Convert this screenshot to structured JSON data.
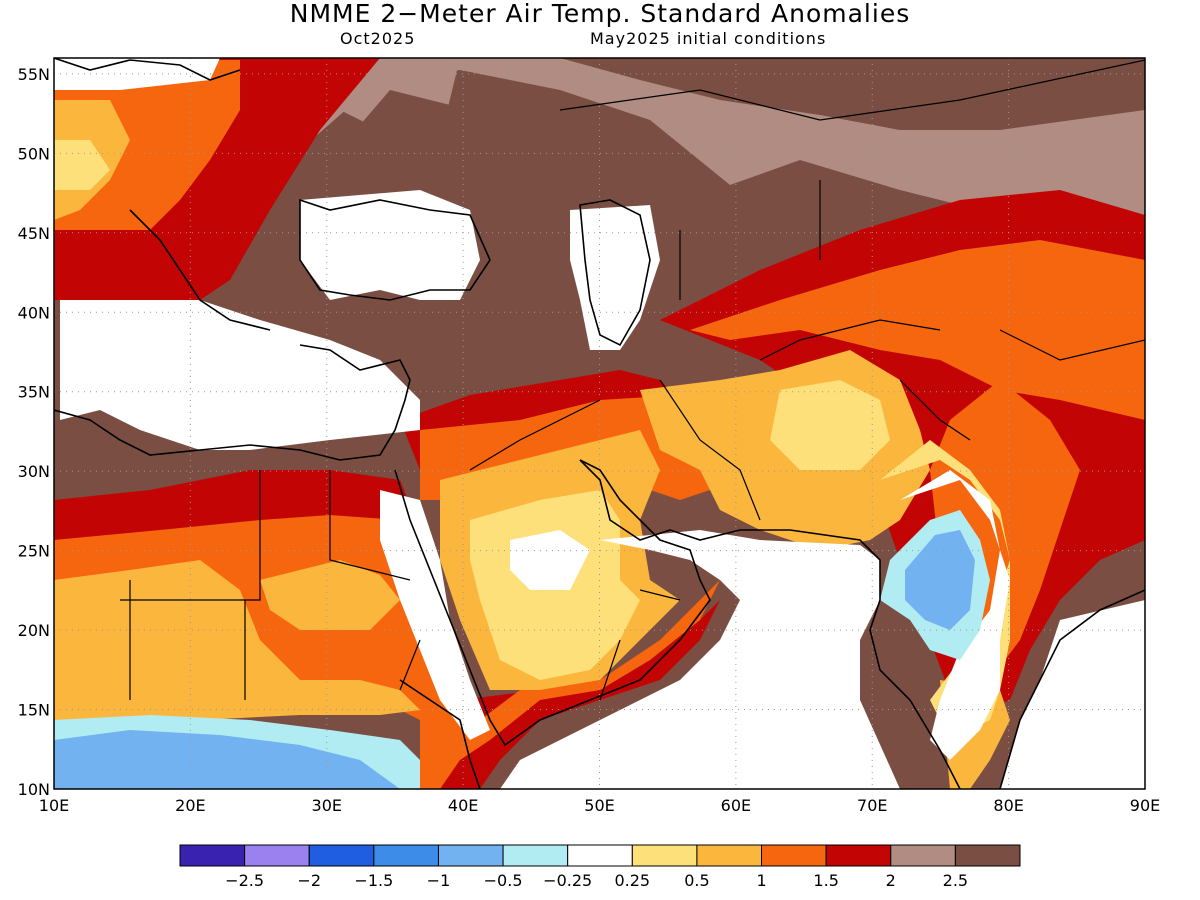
{
  "title": "NMME 2−Meter Air Temp. Standard Anomalies",
  "subtitle_left": "Oct2025",
  "subtitle_right": "May2025 initial conditions",
  "lat_labels": [
    "55N",
    "50N",
    "45N",
    "40N",
    "35N",
    "30N",
    "25N",
    "20N",
    "15N",
    "10N"
  ],
  "lon_labels": [
    "10E",
    "20E",
    "30E",
    "40E",
    "50E",
    "60E",
    "70E",
    "80E",
    "90E"
  ],
  "map_extent": {
    "lon_min": 10,
    "lon_max": 90,
    "lat_min": 10,
    "lat_max": 56
  },
  "colorbar": {
    "colors": [
      "#3a22b0",
      "#9b80f0",
      "#1f5ee0",
      "#3c8ce8",
      "#72b2f0",
      "#b0ecf2",
      "#ffffff",
      "#fde07a",
      "#fbb63e",
      "#f6660e",
      "#c20404",
      "#b08c82",
      "#7a4e42"
    ],
    "tick_labels": [
      "−2.5",
      "−2",
      "−1.5",
      "−1",
      "−0.5",
      "−0.25",
      "0.25",
      "0.5",
      "1",
      "1.5",
      "2",
      "2.5"
    ]
  },
  "legend_colors": {
    "below_-2.5": "#3a22b0",
    "-2.5_to_-2": "#9b80f0",
    "-2_to_-1.5": "#1f5ee0",
    "-1.5_to_-1": "#3c8ce8",
    "-1_to_-0.5": "#72b2f0",
    "-0.5_to_-0.25": "#b0ecf2",
    "-0.25_to_0.25": "#ffffff",
    "0.25_to_0.5": "#fde07a",
    "0.5_to_1": "#fbb63e",
    "1_to_1.5": "#f6660e",
    "1.5_to_2": "#c20404",
    "2_to_2.5": "#b08c82",
    "above_2.5": "#7a4e42"
  }
}
